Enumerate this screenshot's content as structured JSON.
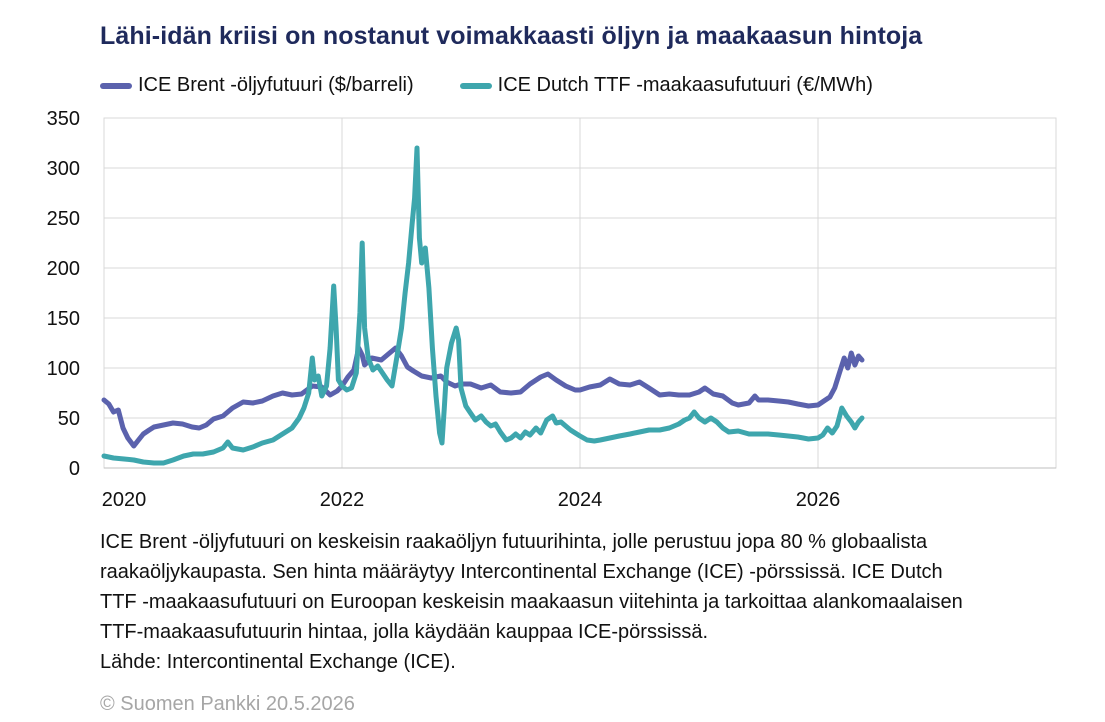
{
  "chart_data": {
    "type": "line",
    "title": "Lähi-idän kriisi on nostanut voimakkaasti öljyn ja maakaasun hintoja",
    "xlabel": "",
    "ylabel": "",
    "xlim": [
      2020.0,
      2028.0
    ],
    "ylim": [
      0,
      350
    ],
    "yticks": [
      0,
      50,
      100,
      150,
      200,
      250,
      300,
      350
    ],
    "xticks": [
      2020,
      2022,
      2024,
      2026
    ],
    "xtick_labels": [
      "2020",
      "2022",
      "2024",
      "2026"
    ],
    "grid": true,
    "legend_position": "top",
    "series": [
      {
        "name": "ICE Brent -öljyfutuuri ($/barreli)",
        "color": "#5b62ad",
        "points": [
          [
            2020.0,
            68
          ],
          [
            2020.04,
            64
          ],
          [
            2020.08,
            56
          ],
          [
            2020.12,
            58
          ],
          [
            2020.16,
            40
          ],
          [
            2020.2,
            30
          ],
          [
            2020.25,
            22
          ],
          [
            2020.29,
            28
          ],
          [
            2020.33,
            34
          ],
          [
            2020.38,
            38
          ],
          [
            2020.42,
            41
          ],
          [
            2020.5,
            43
          ],
          [
            2020.58,
            45
          ],
          [
            2020.66,
            44
          ],
          [
            2020.74,
            41
          ],
          [
            2020.8,
            40
          ],
          [
            2020.86,
            43
          ],
          [
            2020.92,
            49
          ],
          [
            2021.0,
            52
          ],
          [
            2021.08,
            60
          ],
          [
            2021.17,
            66
          ],
          [
            2021.25,
            65
          ],
          [
            2021.33,
            67
          ],
          [
            2021.42,
            72
          ],
          [
            2021.5,
            75
          ],
          [
            2021.58,
            73
          ],
          [
            2021.66,
            74
          ],
          [
            2021.75,
            82
          ],
          [
            2021.83,
            81
          ],
          [
            2021.9,
            73
          ],
          [
            2021.96,
            77
          ],
          [
            2022.0,
            82
          ],
          [
            2022.05,
            91
          ],
          [
            2022.1,
            98
          ],
          [
            2022.14,
            120
          ],
          [
            2022.17,
            113
          ],
          [
            2022.19,
            103
          ],
          [
            2022.25,
            110
          ],
          [
            2022.33,
            108
          ],
          [
            2022.4,
            115
          ],
          [
            2022.45,
            120
          ],
          [
            2022.5,
            112
          ],
          [
            2022.55,
            101
          ],
          [
            2022.6,
            97
          ],
          [
            2022.67,
            92
          ],
          [
            2022.75,
            90
          ],
          [
            2022.83,
            92
          ],
          [
            2022.88,
            86
          ],
          [
            2022.95,
            82
          ],
          [
            2023.0,
            84
          ],
          [
            2023.08,
            84
          ],
          [
            2023.17,
            80
          ],
          [
            2023.25,
            83
          ],
          [
            2023.33,
            76
          ],
          [
            2023.42,
            75
          ],
          [
            2023.5,
            76
          ],
          [
            2023.58,
            84
          ],
          [
            2023.67,
            91
          ],
          [
            2023.73,
            94
          ],
          [
            2023.8,
            88
          ],
          [
            2023.88,
            82
          ],
          [
            2023.96,
            78
          ],
          [
            2024.0,
            78
          ],
          [
            2024.08,
            81
          ],
          [
            2024.17,
            83
          ],
          [
            2024.25,
            89
          ],
          [
            2024.33,
            84
          ],
          [
            2024.42,
            83
          ],
          [
            2024.5,
            86
          ],
          [
            2024.58,
            80
          ],
          [
            2024.67,
            73
          ],
          [
            2024.75,
            74
          ],
          [
            2024.83,
            73
          ],
          [
            2024.92,
            73
          ],
          [
            2025.0,
            76
          ],
          [
            2025.05,
            80
          ],
          [
            2025.12,
            74
          ],
          [
            2025.2,
            72
          ],
          [
            2025.28,
            65
          ],
          [
            2025.33,
            63
          ],
          [
            2025.42,
            65
          ],
          [
            2025.47,
            72
          ],
          [
            2025.5,
            68
          ],
          [
            2025.58,
            68
          ],
          [
            2025.67,
            67
          ],
          [
            2025.75,
            66
          ],
          [
            2025.83,
            64
          ],
          [
            2025.92,
            62
          ],
          [
            2026.0,
            63
          ],
          [
            2026.05,
            67
          ],
          [
            2026.1,
            71
          ],
          [
            2026.14,
            80
          ],
          [
            2026.18,
            95
          ],
          [
            2026.22,
            110
          ],
          [
            2026.25,
            100
          ],
          [
            2026.28,
            115
          ],
          [
            2026.31,
            103
          ],
          [
            2026.34,
            112
          ],
          [
            2026.37,
            108
          ]
        ]
      },
      {
        "name": "ICE Dutch TTF -maakaasufutuuri (€/MWh)",
        "color": "#3ea6ad",
        "points": [
          [
            2020.0,
            12
          ],
          [
            2020.08,
            10
          ],
          [
            2020.17,
            9
          ],
          [
            2020.25,
            8
          ],
          [
            2020.33,
            6
          ],
          [
            2020.42,
            5
          ],
          [
            2020.5,
            5
          ],
          [
            2020.58,
            8
          ],
          [
            2020.67,
            12
          ],
          [
            2020.75,
            14
          ],
          [
            2020.83,
            14
          ],
          [
            2020.92,
            16
          ],
          [
            2021.0,
            20
          ],
          [
            2021.04,
            26
          ],
          [
            2021.08,
            20
          ],
          [
            2021.17,
            18
          ],
          [
            2021.25,
            21
          ],
          [
            2021.33,
            25
          ],
          [
            2021.42,
            28
          ],
          [
            2021.5,
            34
          ],
          [
            2021.58,
            40
          ],
          [
            2021.64,
            50
          ],
          [
            2021.68,
            60
          ],
          [
            2021.72,
            75
          ],
          [
            2021.75,
            110
          ],
          [
            2021.77,
            88
          ],
          [
            2021.8,
            92
          ],
          [
            2021.83,
            72
          ],
          [
            2021.87,
            82
          ],
          [
            2021.9,
            120
          ],
          [
            2021.93,
            182
          ],
          [
            2021.95,
            140
          ],
          [
            2021.97,
            88
          ],
          [
            2022.0,
            82
          ],
          [
            2022.04,
            78
          ],
          [
            2022.08,
            80
          ],
          [
            2022.12,
            95
          ],
          [
            2022.15,
            155
          ],
          [
            2022.17,
            225
          ],
          [
            2022.19,
            140
          ],
          [
            2022.22,
            110
          ],
          [
            2022.26,
            98
          ],
          [
            2022.3,
            102
          ],
          [
            2022.34,
            95
          ],
          [
            2022.38,
            88
          ],
          [
            2022.42,
            82
          ],
          [
            2022.46,
            110
          ],
          [
            2022.5,
            140
          ],
          [
            2022.53,
            175
          ],
          [
            2022.56,
            205
          ],
          [
            2022.59,
            245
          ],
          [
            2022.61,
            270
          ],
          [
            2022.63,
            320
          ],
          [
            2022.65,
            230
          ],
          [
            2022.67,
            205
          ],
          [
            2022.7,
            220
          ],
          [
            2022.73,
            180
          ],
          [
            2022.76,
            120
          ],
          [
            2022.79,
            72
          ],
          [
            2022.82,
            35
          ],
          [
            2022.84,
            25
          ],
          [
            2022.86,
            60
          ],
          [
            2022.88,
            100
          ],
          [
            2022.92,
            125
          ],
          [
            2022.96,
            140
          ],
          [
            2022.98,
            128
          ],
          [
            2023.0,
            80
          ],
          [
            2023.04,
            62
          ],
          [
            2023.08,
            55
          ],
          [
            2023.12,
            48
          ],
          [
            2023.17,
            52
          ],
          [
            2023.21,
            46
          ],
          [
            2023.25,
            42
          ],
          [
            2023.29,
            44
          ],
          [
            2023.33,
            36
          ],
          [
            2023.38,
            28
          ],
          [
            2023.42,
            30
          ],
          [
            2023.46,
            34
          ],
          [
            2023.5,
            30
          ],
          [
            2023.54,
            36
          ],
          [
            2023.58,
            33
          ],
          [
            2023.63,
            40
          ],
          [
            2023.67,
            35
          ],
          [
            2023.72,
            48
          ],
          [
            2023.77,
            52
          ],
          [
            2023.8,
            45
          ],
          [
            2023.84,
            46
          ],
          [
            2023.88,
            42
          ],
          [
            2023.92,
            38
          ],
          [
            2023.96,
            35
          ],
          [
            2024.0,
            32
          ],
          [
            2024.06,
            28
          ],
          [
            2024.12,
            27
          ],
          [
            2024.17,
            28
          ],
          [
            2024.25,
            30
          ],
          [
            2024.33,
            32
          ],
          [
            2024.42,
            34
          ],
          [
            2024.5,
            36
          ],
          [
            2024.58,
            38
          ],
          [
            2024.67,
            38
          ],
          [
            2024.75,
            40
          ],
          [
            2024.83,
            44
          ],
          [
            2024.88,
            48
          ],
          [
            2024.92,
            50
          ],
          [
            2024.96,
            56
          ],
          [
            2025.0,
            50
          ],
          [
            2025.05,
            46
          ],
          [
            2025.1,
            50
          ],
          [
            2025.15,
            46
          ],
          [
            2025.2,
            40
          ],
          [
            2025.25,
            36
          ],
          [
            2025.33,
            37
          ],
          [
            2025.42,
            34
          ],
          [
            2025.5,
            34
          ],
          [
            2025.58,
            34
          ],
          [
            2025.67,
            33
          ],
          [
            2025.75,
            32
          ],
          [
            2025.83,
            31
          ],
          [
            2025.92,
            29
          ],
          [
            2026.0,
            30
          ],
          [
            2026.04,
            33
          ],
          [
            2026.08,
            40
          ],
          [
            2026.12,
            35
          ],
          [
            2026.16,
            42
          ],
          [
            2026.2,
            60
          ],
          [
            2026.24,
            52
          ],
          [
            2026.28,
            46
          ],
          [
            2026.31,
            40
          ],
          [
            2026.34,
            46
          ],
          [
            2026.37,
            50
          ]
        ]
      }
    ]
  },
  "notes": [
    "ICE Brent -öljyfutuuri on keskeisin raakaöljyn futuurihinta, jolle perustuu jopa 80 % globaalista",
    "raakaöljykaupasta. Sen hinta määräytyy Intercontinental Exchange (ICE) -pörssissä. ICE Dutch",
    "TTF -maakaasufutuuri on Euroopan keskeisin maakaasun viitehinta ja tarkoittaa alankomaalaisen",
    "TTF-maakaasufutuurin hintaa, jolla käydään kauppaa ICE-pörssissä.",
    "Lähde: Intercontinental Exchange (ICE)."
  ],
  "copyright": "© Suomen Pankki 20.5.2026"
}
